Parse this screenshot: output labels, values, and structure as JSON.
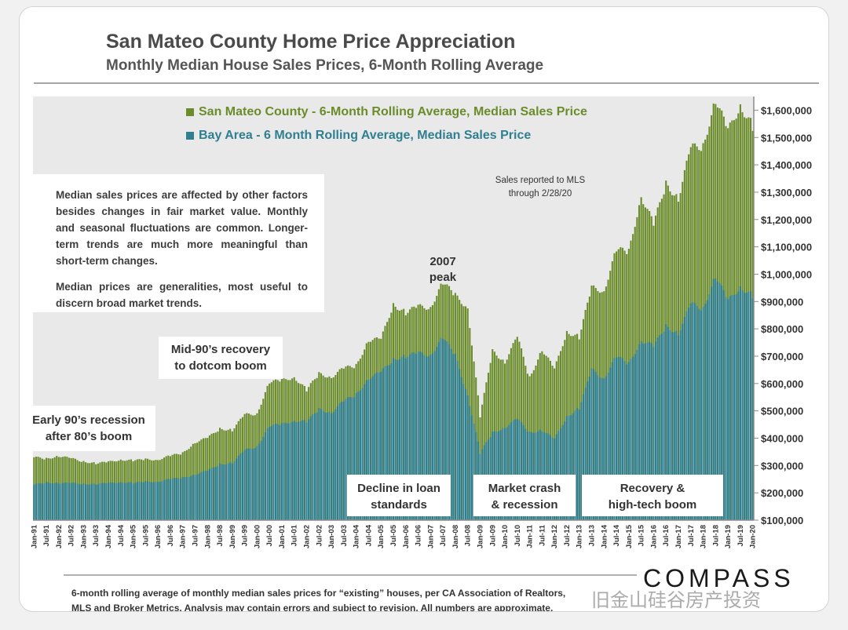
{
  "title": "San Mateo County Home Price Appreciation",
  "subtitle": "Monthly Median House Sales Prices, 6-Month Rolling Average",
  "legend": [
    {
      "label": "San Mateo County - 6-Month Rolling Average, Median Sales Price",
      "color": "#6b8c2a"
    },
    {
      "label": "Bay Area - 6 Month Rolling Average, Median Sales Price",
      "color": "#2f7f91"
    }
  ],
  "notes": {
    "p1": "Median sales prices are affected by other factors besides changes in fair market value. Monthly and seasonal fluctuations are common. Longer-term trends are much more meaningful than short-term changes.",
    "p2": "Median prices are generalities, most useful to discern broad market trends."
  },
  "sales_reported": "Sales reported to MLS\nthrough 2/28/20",
  "peak_label": "2007\npeak",
  "annotations": {
    "early90s": "Early 90’s recession\nafter 80’s boom",
    "mid90s": "Mid-90’s recovery\nto dotcom boom",
    "decline": "Decline in loan\nstandards",
    "crash": "Market crash\n& recession",
    "recovery": "Recovery &\nhigh-tech boom"
  },
  "source_line1": "6-month rolling average of monthly median sales prices for “existing” houses, per CA Association of Realtors,",
  "source_line2": "MLS and Broker Metrics.  Analysis may contain errors and subject to revision. All numbers are approximate.",
  "brand": "COMPASS",
  "watermark": "旧金山硅谷房产投资",
  "chart_data": {
    "type": "bar",
    "x_tick_labels": [
      "Jan-91",
      "Jul-91",
      "Jan-92",
      "Jul-92",
      "Jan-93",
      "Jul-93",
      "Jan-94",
      "Jul-94",
      "Jan-95",
      "Jul-95",
      "Jan-96",
      "Jul-96",
      "Jan-97",
      "Jul-97",
      "Jan-98",
      "Jul-98",
      "Jan-99",
      "Jul-99",
      "Jan-00",
      "Jul-00",
      "Jan-01",
      "Jul-01",
      "Jan-02",
      "Jul-02",
      "Jan-03",
      "Jul-03",
      "Jan-04",
      "Jul-04",
      "Jan-05",
      "Jul-05",
      "Jan-06",
      "Jul-06",
      "Jan-07",
      "Jul-07",
      "Jan-08",
      "Jul-08",
      "Jan-09",
      "Jul-09",
      "Jan-10",
      "Jul-10",
      "Jan-11",
      "Jul-11",
      "Jan-12",
      "Jul-12",
      "Jan-13",
      "Jul-13",
      "Jan-14",
      "Jul-14",
      "Jan-15",
      "Jul-15",
      "Jan-16",
      "Jul-16",
      "Jan-17",
      "Jul-17",
      "Jan-18",
      "Jul-18",
      "Jan-19",
      "Jul-19",
      "Jan-20"
    ],
    "y_ticks": [
      100000,
      200000,
      300000,
      400000,
      500000,
      600000,
      700000,
      800000,
      900000,
      1000000,
      1100000,
      1200000,
      1300000,
      1400000,
      1500000,
      1600000
    ],
    "y_tick_labels": [
      "$100,000",
      "$200,000",
      "$300,000",
      "$400,000",
      "$500,000",
      "$600,000",
      "$700,000",
      "$800,000",
      "$900,000",
      "$1,000,000",
      "$1,100,000",
      "$1,200,000",
      "$1,300,000",
      "$1,400,000",
      "$1,500,000",
      "$1,600,000"
    ],
    "ylim": [
      100000,
      1650000
    ],
    "series": [
      {
        "name": "San Mateo County - 6-Month Rolling Average, Median Sales Price",
        "color": "#6b8c2a",
        "anchors": [
          [
            "Jan-91",
            330000
          ],
          [
            "Jul-91",
            325000
          ],
          [
            "Jan-92",
            335000
          ],
          [
            "Jul-92",
            325000
          ],
          [
            "Jan-93",
            315000
          ],
          [
            "Jul-93",
            308000
          ],
          [
            "Jan-94",
            312000
          ],
          [
            "Jul-94",
            322000
          ],
          [
            "Jan-95",
            318000
          ],
          [
            "Jul-95",
            322000
          ],
          [
            "Jan-96",
            322000
          ],
          [
            "Jul-96",
            335000
          ],
          [
            "Jan-97",
            345000
          ],
          [
            "Jul-97",
            385000
          ],
          [
            "Jan-98",
            400000
          ],
          [
            "Jul-98",
            435000
          ],
          [
            "Jan-99",
            430000
          ],
          [
            "Jul-99",
            485000
          ],
          [
            "Jan-00",
            490000
          ],
          [
            "Jul-00",
            605000
          ],
          [
            "Jan-01",
            610000
          ],
          [
            "Jul-01",
            625000
          ],
          [
            "Jan-02",
            575000
          ],
          [
            "Jul-02",
            635000
          ],
          [
            "Jan-03",
            625000
          ],
          [
            "Jul-03",
            655000
          ],
          [
            "Jan-04",
            665000
          ],
          [
            "Jul-04",
            760000
          ],
          [
            "Jan-05",
            760000
          ],
          [
            "Jul-05",
            890000
          ],
          [
            "Jan-06",
            860000
          ],
          [
            "Jul-06",
            880000
          ],
          [
            "Jan-07",
            880000
          ],
          [
            "Jul-07",
            970000
          ],
          [
            "Jan-08",
            920000
          ],
          [
            "Jul-08",
            880000
          ],
          [
            "Jan-09",
            480000
          ],
          [
            "Jul-09",
            720000
          ],
          [
            "Jan-10",
            680000
          ],
          [
            "Jul-10",
            770000
          ],
          [
            "Jan-11",
            620000
          ],
          [
            "Jul-11",
            725000
          ],
          [
            "Jan-12",
            650000
          ],
          [
            "Jul-12",
            790000
          ],
          [
            "Jan-13",
            770000
          ],
          [
            "Jul-13",
            950000
          ],
          [
            "Jan-14",
            940000
          ],
          [
            "Jul-14",
            1090000
          ],
          [
            "Jan-15",
            1080000
          ],
          [
            "Jul-15",
            1290000
          ],
          [
            "Jan-16",
            1180000
          ],
          [
            "Jul-16",
            1330000
          ],
          [
            "Jan-17",
            1280000
          ],
          [
            "Jul-17",
            1460000
          ],
          [
            "Jan-18",
            1470000
          ],
          [
            "Jul-18",
            1640000
          ],
          [
            "Jan-19",
            1520000
          ],
          [
            "Jul-19",
            1620000
          ],
          [
            "Jan-20",
            1540000
          ]
        ]
      },
      {
        "name": "Bay Area - 6 Month Rolling Average, Median Sales Price",
        "color": "#2f7f91",
        "anchors": [
          [
            "Jan-91",
            230000
          ],
          [
            "Jul-91",
            238000
          ],
          [
            "Jan-92",
            236000
          ],
          [
            "Jul-92",
            235000
          ],
          [
            "Jan-93",
            233000
          ],
          [
            "Jul-93",
            232000
          ],
          [
            "Jan-94",
            235000
          ],
          [
            "Jul-94",
            240000
          ],
          [
            "Jan-95",
            236000
          ],
          [
            "Jul-95",
            240000
          ],
          [
            "Jan-96",
            242000
          ],
          [
            "Jul-96",
            250000
          ],
          [
            "Jan-97",
            255000
          ],
          [
            "Jul-97",
            268000
          ],
          [
            "Jan-98",
            280000
          ],
          [
            "Jul-98",
            305000
          ],
          [
            "Jan-99",
            310000
          ],
          [
            "Jul-99",
            355000
          ],
          [
            "Jan-00",
            370000
          ],
          [
            "Jul-00",
            445000
          ],
          [
            "Jan-01",
            450000
          ],
          [
            "Jul-01",
            465000
          ],
          [
            "Jan-02",
            460000
          ],
          [
            "Jul-02",
            505000
          ],
          [
            "Jan-03",
            495000
          ],
          [
            "Jul-03",
            535000
          ],
          [
            "Jan-04",
            560000
          ],
          [
            "Jul-04",
            620000
          ],
          [
            "Jan-05",
            640000
          ],
          [
            "Jul-05",
            690000
          ],
          [
            "Jan-06",
            700000
          ],
          [
            "Jul-06",
            710000
          ],
          [
            "Jan-07",
            705000
          ],
          [
            "Jul-07",
            770000
          ],
          [
            "Jan-08",
            700000
          ],
          [
            "Jul-08",
            560000
          ],
          [
            "Jan-09",
            345000
          ],
          [
            "Jul-09",
            420000
          ],
          [
            "Jan-10",
            440000
          ],
          [
            "Jul-10",
            470000
          ],
          [
            "Jan-11",
            420000
          ],
          [
            "Jul-11",
            430000
          ],
          [
            "Jan-12",
            395000
          ],
          [
            "Jul-12",
            480000
          ],
          [
            "Jan-13",
            510000
          ],
          [
            "Jul-13",
            650000
          ],
          [
            "Jan-14",
            620000
          ],
          [
            "Jul-14",
            700000
          ],
          [
            "Jan-15",
            670000
          ],
          [
            "Jul-15",
            760000
          ],
          [
            "Jan-16",
            735000
          ],
          [
            "Jul-16",
            810000
          ],
          [
            "Jan-17",
            785000
          ],
          [
            "Jul-17",
            890000
          ],
          [
            "Jan-18",
            875000
          ],
          [
            "Jul-18",
            995000
          ],
          [
            "Jan-19",
            900000
          ],
          [
            "Jul-19",
            955000
          ],
          [
            "Jan-20",
            920000
          ]
        ]
      }
    ],
    "grid": false,
    "legend_position": "top-center"
  }
}
